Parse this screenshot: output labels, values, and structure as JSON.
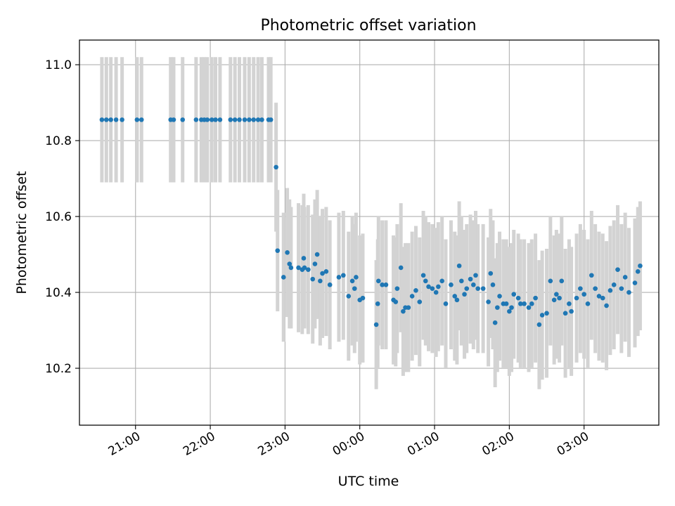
{
  "chart_data": {
    "type": "scatter",
    "title": "Photometric offset variation",
    "xlabel": "UTC time",
    "ylabel": "Photometric offset",
    "x_unit": "hours",
    "x_ticks": [
      {
        "hour": 21,
        "label": "21:00"
      },
      {
        "hour": 22,
        "label": "22:00"
      },
      {
        "hour": 23,
        "label": "23:00"
      },
      {
        "hour": 24,
        "label": "00:00"
      },
      {
        "hour": 25,
        "label": "01:00"
      },
      {
        "hour": 26,
        "label": "02:00"
      },
      {
        "hour": 27,
        "label": "03:00"
      }
    ],
    "y_ticks": [
      10.2,
      10.4,
      10.6,
      10.8,
      11.0
    ],
    "y_tick_labels": [
      "10.2",
      "10.4",
      "10.6",
      "10.8",
      "11.0"
    ],
    "xlim": [
      20.25,
      28.0
    ],
    "ylim": [
      10.05,
      11.065
    ],
    "grid": true,
    "marker_color": "#1f77b4",
    "errorbar_color": "#d3d3d3",
    "points": [
      [
        20.55,
        10.855,
        0.165
      ],
      [
        20.61,
        10.855,
        0.165
      ],
      [
        20.67,
        10.855,
        0.165
      ],
      [
        20.74,
        10.855,
        0.165
      ],
      [
        20.82,
        10.855,
        0.165
      ],
      [
        21.02,
        10.855,
        0.165
      ],
      [
        21.08,
        10.855,
        0.165
      ],
      [
        21.47,
        10.855,
        0.165
      ],
      [
        21.51,
        10.855,
        0.165
      ],
      [
        21.63,
        10.855,
        0.165
      ],
      [
        21.81,
        10.855,
        0.165
      ],
      [
        21.88,
        10.855,
        0.165
      ],
      [
        21.92,
        10.855,
        0.165
      ],
      [
        21.96,
        10.855,
        0.165
      ],
      [
        22.02,
        10.855,
        0.165
      ],
      [
        22.07,
        10.855,
        0.165
      ],
      [
        22.13,
        10.855,
        0.165
      ],
      [
        22.27,
        10.855,
        0.165
      ],
      [
        22.33,
        10.855,
        0.165
      ],
      [
        22.39,
        10.855,
        0.165
      ],
      [
        22.46,
        10.855,
        0.165
      ],
      [
        22.52,
        10.855,
        0.165
      ],
      [
        22.58,
        10.855,
        0.165
      ],
      [
        22.64,
        10.855,
        0.165
      ],
      [
        22.69,
        10.855,
        0.165
      ],
      [
        22.78,
        10.855,
        0.165
      ],
      [
        22.81,
        10.855,
        0.165
      ],
      [
        22.88,
        10.73,
        0.17
      ],
      [
        22.9,
        10.51,
        0.16
      ],
      [
        22.98,
        10.44,
        0.17
      ],
      [
        23.03,
        10.505,
        0.17
      ],
      [
        23.06,
        10.475,
        0.17
      ],
      [
        23.08,
        10.465,
        0.16
      ],
      [
        23.18,
        10.465,
        0.17
      ],
      [
        23.23,
        10.46,
        0.17
      ],
      [
        23.25,
        10.49,
        0.17
      ],
      [
        23.26,
        10.465,
        0.16
      ],
      [
        23.31,
        10.46,
        0.17
      ],
      [
        23.37,
        10.435,
        0.17
      ],
      [
        23.4,
        10.475,
        0.17
      ],
      [
        23.43,
        10.5,
        0.17
      ],
      [
        23.47,
        10.43,
        0.17
      ],
      [
        23.5,
        10.45,
        0.17
      ],
      [
        23.55,
        10.455,
        0.17
      ],
      [
        23.6,
        10.42,
        0.17
      ],
      [
        23.72,
        10.44,
        0.17
      ],
      [
        23.78,
        10.445,
        0.17
      ],
      [
        23.85,
        10.39,
        0.17
      ],
      [
        23.9,
        10.43,
        0.17
      ],
      [
        23.93,
        10.41,
        0.17
      ],
      [
        23.95,
        10.44,
        0.17
      ],
      [
        24.0,
        10.38,
        0.17
      ],
      [
        24.04,
        10.385,
        0.17
      ],
      [
        24.22,
        10.315,
        0.17
      ],
      [
        24.24,
        10.37,
        0.17
      ],
      [
        24.25,
        10.43,
        0.17
      ],
      [
        24.3,
        10.42,
        0.17
      ],
      [
        24.35,
        10.42,
        0.17
      ],
      [
        24.45,
        10.38,
        0.17
      ],
      [
        24.48,
        10.375,
        0.17
      ],
      [
        24.5,
        10.41,
        0.17
      ],
      [
        24.55,
        10.465,
        0.17
      ],
      [
        24.58,
        10.35,
        0.17
      ],
      [
        24.61,
        10.36,
        0.17
      ],
      [
        24.65,
        10.36,
        0.17
      ],
      [
        24.7,
        10.39,
        0.17
      ],
      [
        24.75,
        10.405,
        0.17
      ],
      [
        24.8,
        10.375,
        0.17
      ],
      [
        24.85,
        10.445,
        0.17
      ],
      [
        24.88,
        10.43,
        0.17
      ],
      [
        24.92,
        10.415,
        0.17
      ],
      [
        24.97,
        10.41,
        0.17
      ],
      [
        25.02,
        10.4,
        0.17
      ],
      [
        25.05,
        10.415,
        0.17
      ],
      [
        25.1,
        10.43,
        0.17
      ],
      [
        25.15,
        10.37,
        0.17
      ],
      [
        25.22,
        10.42,
        0.17
      ],
      [
        25.27,
        10.39,
        0.17
      ],
      [
        25.3,
        10.38,
        0.17
      ],
      [
        25.33,
        10.47,
        0.17
      ],
      [
        25.36,
        10.43,
        0.17
      ],
      [
        25.4,
        10.395,
        0.17
      ],
      [
        25.43,
        10.41,
        0.17
      ],
      [
        25.48,
        10.435,
        0.17
      ],
      [
        25.52,
        10.42,
        0.17
      ],
      [
        25.55,
        10.445,
        0.17
      ],
      [
        25.58,
        10.41,
        0.17
      ],
      [
        25.65,
        10.41,
        0.17
      ],
      [
        25.72,
        10.375,
        0.17
      ],
      [
        25.75,
        10.45,
        0.17
      ],
      [
        25.78,
        10.42,
        0.17
      ],
      [
        25.81,
        10.32,
        0.17
      ],
      [
        25.84,
        10.36,
        0.17
      ],
      [
        25.87,
        10.39,
        0.17
      ],
      [
        25.92,
        10.37,
        0.17
      ],
      [
        25.96,
        10.37,
        0.17
      ],
      [
        26.0,
        10.35,
        0.17
      ],
      [
        26.03,
        10.36,
        0.17
      ],
      [
        26.06,
        10.395,
        0.17
      ],
      [
        26.12,
        10.385,
        0.17
      ],
      [
        26.15,
        10.37,
        0.17
      ],
      [
        26.2,
        10.37,
        0.17
      ],
      [
        26.26,
        10.36,
        0.17
      ],
      [
        26.3,
        10.37,
        0.17
      ],
      [
        26.35,
        10.385,
        0.17
      ],
      [
        26.4,
        10.315,
        0.17
      ],
      [
        26.44,
        10.34,
        0.17
      ],
      [
        26.5,
        10.345,
        0.17
      ],
      [
        26.55,
        10.43,
        0.17
      ],
      [
        26.6,
        10.38,
        0.17
      ],
      [
        26.63,
        10.395,
        0.17
      ],
      [
        26.67,
        10.385,
        0.17
      ],
      [
        26.7,
        10.43,
        0.17
      ],
      [
        26.75,
        10.345,
        0.17
      ],
      [
        26.8,
        10.37,
        0.17
      ],
      [
        26.83,
        10.35,
        0.17
      ],
      [
        26.9,
        10.385,
        0.17
      ],
      [
        26.95,
        10.41,
        0.17
      ],
      [
        27.0,
        10.395,
        0.17
      ],
      [
        27.05,
        10.37,
        0.17
      ],
      [
        27.1,
        10.445,
        0.17
      ],
      [
        27.15,
        10.41,
        0.17
      ],
      [
        27.2,
        10.39,
        0.17
      ],
      [
        27.25,
        10.385,
        0.17
      ],
      [
        27.3,
        10.365,
        0.17
      ],
      [
        27.35,
        10.405,
        0.17
      ],
      [
        27.4,
        10.42,
        0.17
      ],
      [
        27.45,
        10.46,
        0.17
      ],
      [
        27.5,
        10.41,
        0.17
      ],
      [
        27.55,
        10.44,
        0.17
      ],
      [
        27.6,
        10.4,
        0.17
      ],
      [
        27.68,
        10.425,
        0.17
      ],
      [
        27.72,
        10.455,
        0.17
      ],
      [
        27.75,
        10.47,
        0.17
      ]
    ]
  }
}
